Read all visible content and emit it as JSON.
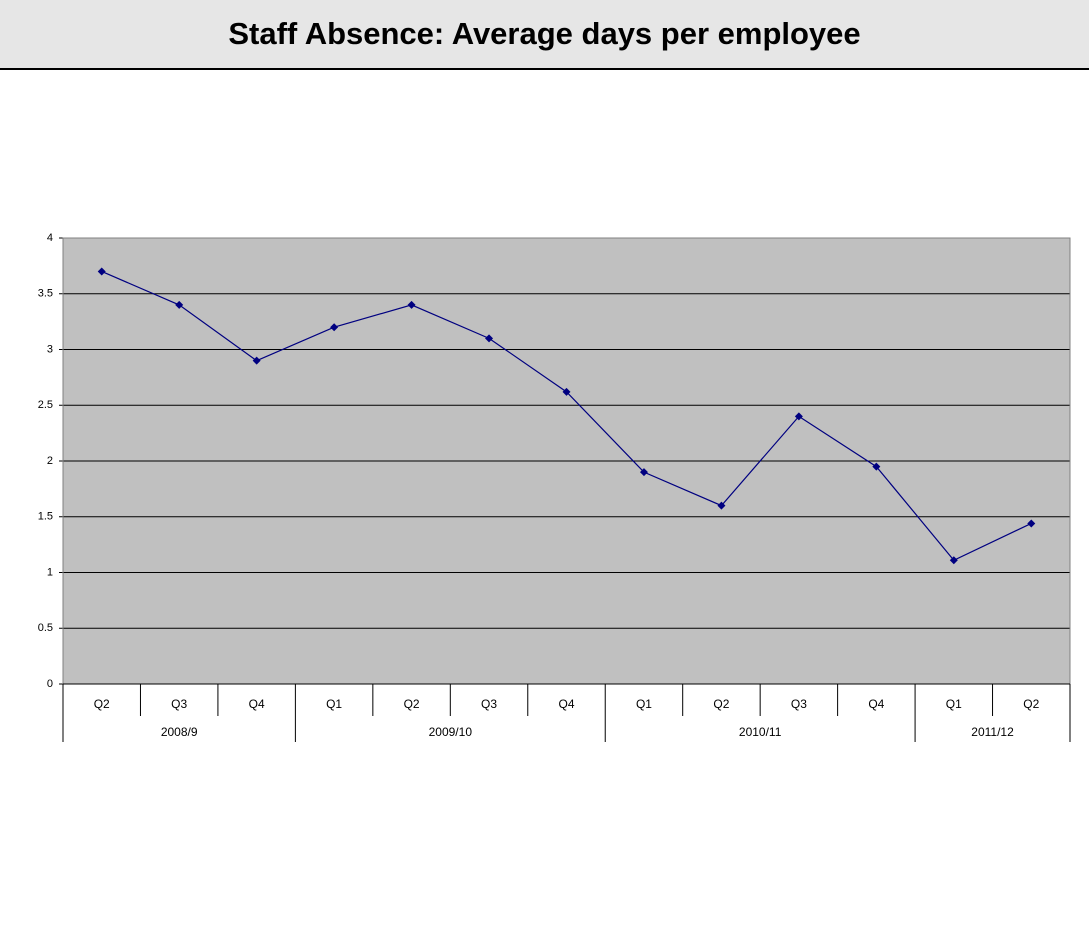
{
  "chart_data": {
    "type": "line",
    "title": "Staff Absence: Average days per employee",
    "groups": [
      {
        "label": "2008/9",
        "categories": [
          "Q2",
          "Q3",
          "Q4"
        ]
      },
      {
        "label": "2009/10",
        "categories": [
          "Q1",
          "Q2",
          "Q3",
          "Q4"
        ]
      },
      {
        "label": "2010/11",
        "categories": [
          "Q1",
          "Q2",
          "Q3",
          "Q4"
        ]
      },
      {
        "label": "2011/12",
        "categories": [
          "Q1",
          "Q2"
        ]
      }
    ],
    "values": [
      3.7,
      3.4,
      2.9,
      3.2,
      3.4,
      3.1,
      2.62,
      1.9,
      1.6,
      2.4,
      1.95,
      1.11,
      1.44
    ],
    "color": "#000080",
    "plot_color": "#c0c0c0",
    "ylim": [
      0,
      4
    ],
    "yticks": [
      0,
      0.5,
      1,
      1.5,
      2,
      2.5,
      3,
      3.5,
      4
    ],
    "grid": true
  }
}
